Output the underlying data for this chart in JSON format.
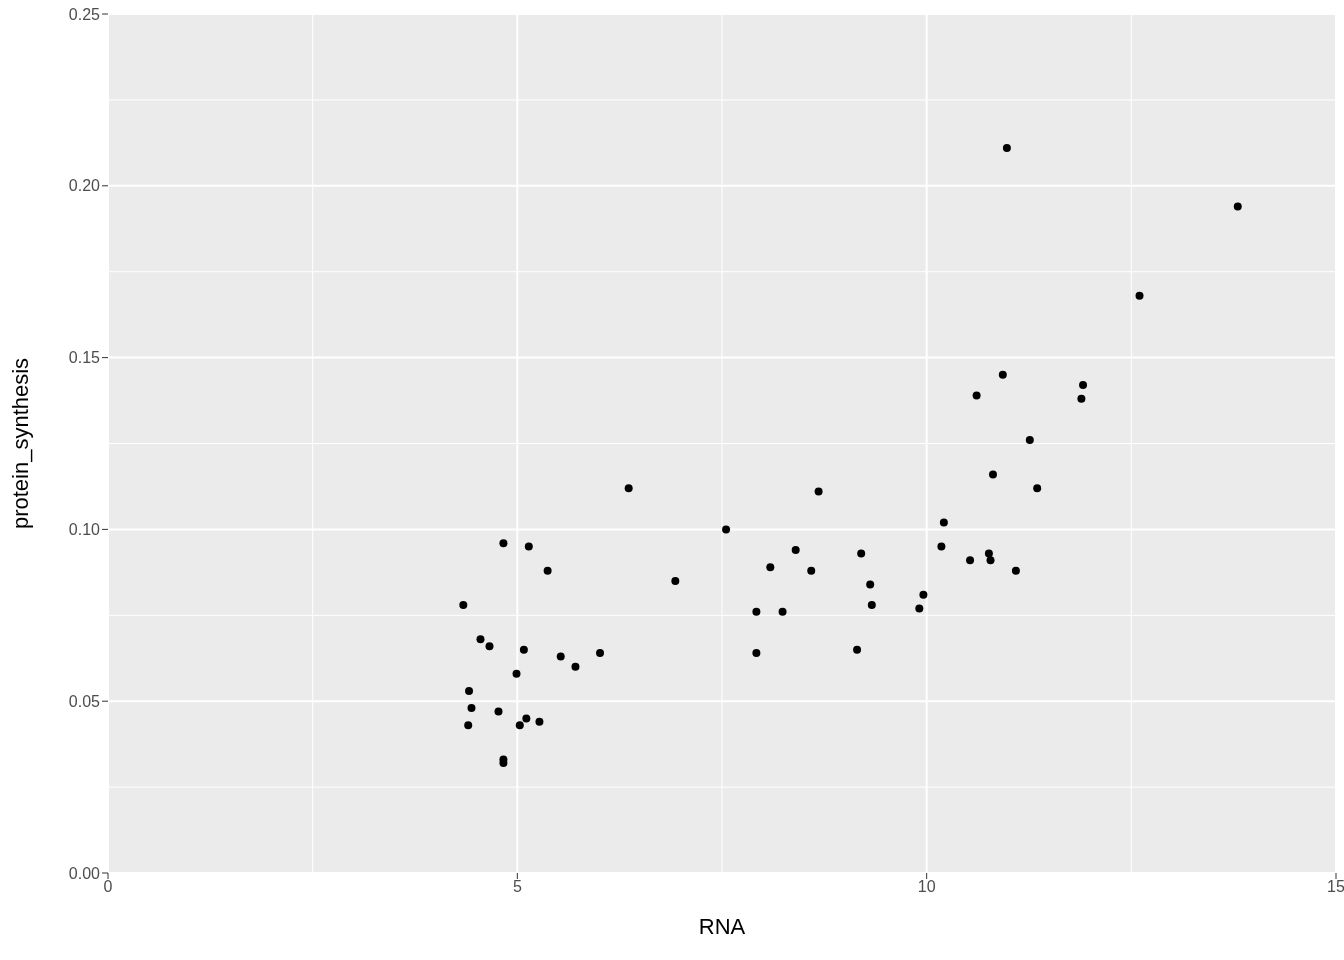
{
  "chart_data": {
    "type": "scatter",
    "xlabel": "RNA",
    "ylabel": "protein_synthesis",
    "xlim": [
      0,
      15
    ],
    "ylim": [
      0,
      0.25
    ],
    "xticks": [
      0,
      5,
      10,
      15
    ],
    "yticks": [
      {
        "value": 0,
        "label": "0.00"
      },
      {
        "value": 0.05,
        "label": "0.05"
      },
      {
        "value": 0.1,
        "label": "0.10"
      },
      {
        "value": 0.15,
        "label": "0.15"
      },
      {
        "value": 0.2,
        "label": "0.20"
      },
      {
        "value": 0.25,
        "label": "0.25"
      }
    ],
    "grid": true,
    "marker": "circle",
    "legend": false,
    "series": [
      {
        "color": "#000000",
        "x": [
          4.34,
          4.41,
          4.44,
          4.4,
          4.55,
          4.66,
          4.77,
          4.83,
          4.83,
          4.83,
          4.99,
          5.03,
          5.08,
          5.11,
          5.14,
          5.27,
          5.37,
          5.53,
          5.71,
          6.01,
          6.36,
          6.93,
          7.55,
          7.92,
          7.92,
          8.09,
          8.24,
          8.4,
          8.59,
          8.68,
          9.15,
          9.2,
          9.31,
          9.33,
          9.91,
          9.96,
          10.18,
          10.21,
          10.53,
          10.61,
          10.76,
          10.78,
          10.81,
          10.93,
          10.98,
          11.09,
          11.26,
          11.35,
          11.89,
          11.91,
          12.6,
          13.8
        ],
        "values": [
          0.078,
          0.053,
          0.048,
          0.043,
          0.068,
          0.066,
          0.047,
          0.096,
          0.033,
          0.032,
          0.058,
          0.043,
          0.065,
          0.045,
          0.095,
          0.044,
          0.088,
          0.063,
          0.06,
          0.064,
          0.112,
          0.085,
          0.1,
          0.076,
          0.064,
          0.089,
          0.076,
          0.094,
          0.088,
          0.111,
          0.065,
          0.093,
          0.084,
          0.078,
          0.077,
          0.081,
          0.095,
          0.102,
          0.091,
          0.139,
          0.093,
          0.091,
          0.116,
          0.145,
          0.211,
          0.088,
          0.126,
          0.112,
          0.138,
          0.142,
          0.168,
          0.194
        ]
      }
    ]
  }
}
